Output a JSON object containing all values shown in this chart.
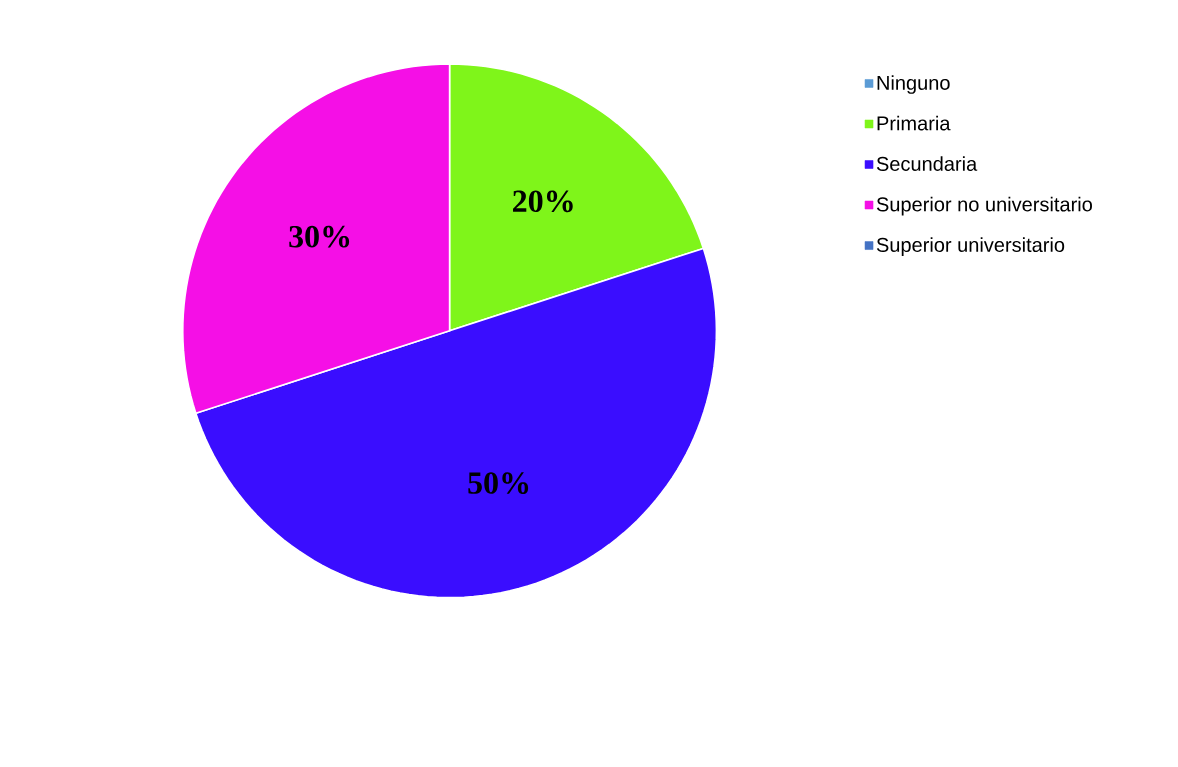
{
  "chart_data": {
    "type": "pie",
    "categories": [
      "Ninguno",
      "Primaria",
      "Secundaria",
      "Superior no universitario",
      "Superior universitario"
    ],
    "values": [
      0,
      20,
      50,
      30,
      0
    ],
    "colors": [
      "#5b9bd5",
      "#7ff51a",
      "#3a0dff",
      "#f50fe6",
      "#4472c4"
    ],
    "value_labels": [
      null,
      "20%",
      "50%",
      "30%",
      null
    ],
    "legend": "top right"
  }
}
